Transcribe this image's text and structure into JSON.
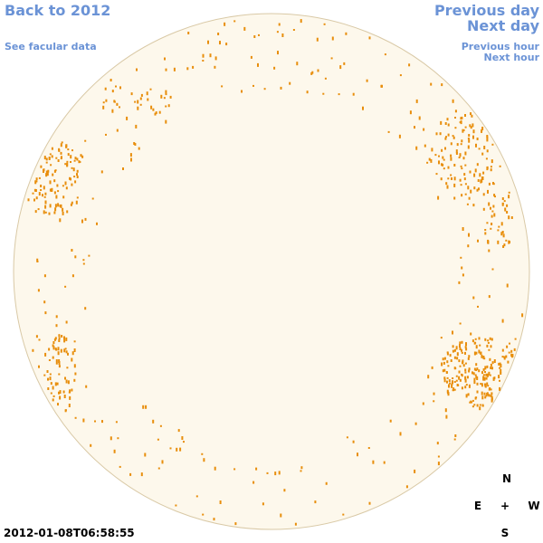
{
  "links": {
    "back": "Back to 2012",
    "facular": "See facular data",
    "previous_day": "Previous day",
    "next_day": "Next day",
    "previous_hour": "Previous hour",
    "next_hour": "Next hour"
  },
  "timestamp": "2012-01-08T06:58:55",
  "compass": {
    "north": "N",
    "east": "E",
    "center": "+",
    "west": "W",
    "south": "S"
  }
}
